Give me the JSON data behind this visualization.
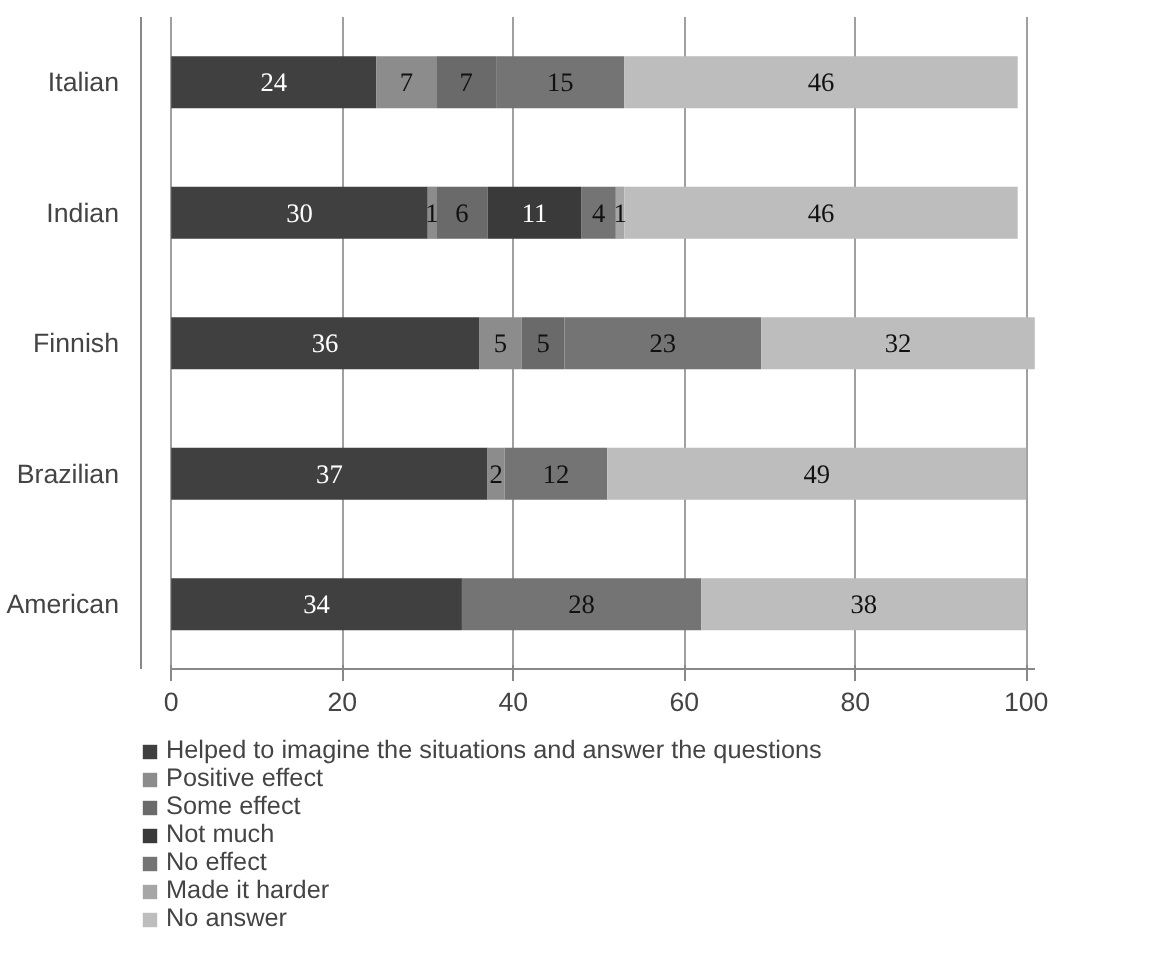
{
  "chart_data": {
    "type": "bar",
    "orientation": "horizontal",
    "stacked": true,
    "data_labels": true,
    "grid": "x",
    "legend": "bottom",
    "categories": [
      "Italian",
      "Indian",
      "Finnish",
      "Brazilian",
      "American"
    ],
    "xlim": [
      0,
      101
    ],
    "xticks": [
      0,
      20,
      40,
      60,
      80,
      100
    ],
    "series": [
      {
        "name": "Helped to imagine the situations and answer the questions",
        "color": "#404040",
        "values": [
          24,
          30,
          36,
          37,
          34
        ]
      },
      {
        "name": "Positive effect",
        "color": "#8c8c8c",
        "values": [
          7,
          1,
          5,
          2,
          null
        ]
      },
      {
        "name": "Some effect",
        "color": "#6a6a6a",
        "values": [
          7,
          6,
          5,
          null,
          null
        ]
      },
      {
        "name": "Not much",
        "color": "#3a3a3a",
        "values": [
          null,
          11,
          null,
          null,
          null
        ]
      },
      {
        "name": "No effect",
        "color": "#747474",
        "values": [
          15,
          4,
          23,
          12,
          28
        ]
      },
      {
        "name": "Made it harder",
        "color": "#a6a6a6",
        "values": [
          null,
          1,
          null,
          null,
          null
        ]
      },
      {
        "name": "No answer",
        "color": "#bdbdbd",
        "values": [
          46,
          46,
          32,
          49,
          38
        ]
      }
    ]
  }
}
